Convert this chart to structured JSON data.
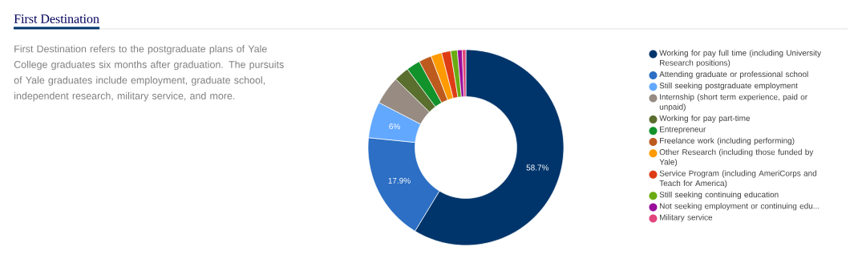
{
  "chart_data": {
    "type": "donut",
    "title": "First Destination",
    "subtitle": "First Destination refers to the postgraduate plans of Yale College graduates six months after graduation. The pursuits of Yale graduates include employment, graduate school, independent research, military service, and more.",
    "categories": [
      "Working for pay full time (including University Research positions)",
      "Attending graduate or professional school",
      "Still seeking postgraduate employment",
      "Internship (short term experience, paid or unpaid)",
      "Working for pay part-time",
      "Entrepreneur",
      "Freelance work (including performing)",
      "Other Research (including those funded by Yale)",
      "Service Program (including AmeriCorps and Teach for America)",
      "Still seeking continuing education",
      "Not seeking employment or continuing edu...",
      "Military service"
    ],
    "values": [
      58.7,
      17.9,
      6,
      4.7,
      2.5,
      2.3,
      2.1,
      1.8,
      1.5,
      1.1,
      0.8,
      0.6
    ],
    "value_labels": [
      "58.7%",
      "17.9%",
      "6%",
      null,
      null,
      null,
      null,
      null,
      null,
      null,
      null,
      null
    ],
    "colors": [
      "#00356b",
      "#2c6fc4",
      "#63a8ff",
      "#978b82",
      "#5a6e2e",
      "#12922a",
      "#bd5a1e",
      "#ff9a00",
      "#de3c14",
      "#6aab12",
      "#9a0c9b",
      "#e0457b"
    ],
    "legend": "right"
  }
}
